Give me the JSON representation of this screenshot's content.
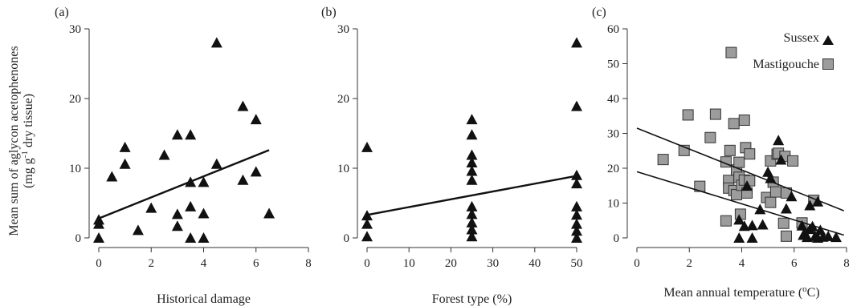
{
  "figure": {
    "ylabel_line1": "Mean sum of aglycon acetophenones",
    "ylabel_line2_pre": "(mg g",
    "ylabel_line2_sup": "-1",
    "ylabel_line2_post": " dry tissue)"
  },
  "chart_data": [
    {
      "panel_label": "(a)",
      "type": "scatter",
      "xlabel": "Historical damage",
      "ylabel": "Mean sum of aglycon acetophenones (mg g-1 dry tissue)",
      "xlim": [
        0,
        8
      ],
      "ylim": [
        0,
        30
      ],
      "xticks": [
        0,
        2,
        4,
        6,
        8
      ],
      "yticks": [
        0,
        10,
        20,
        30
      ],
      "marker": "triangle",
      "series": [
        {
          "points": [
            [
              0,
              0
            ],
            [
              0,
              2
            ],
            [
              0,
              2.6
            ],
            [
              0.5,
              8.8
            ],
            [
              1,
              13
            ],
            [
              1,
              10.6
            ],
            [
              1.5,
              1.1
            ],
            [
              2,
              4.3
            ],
            [
              2.5,
              11.9
            ],
            [
              3,
              14.8
            ],
            [
              3,
              3.4
            ],
            [
              3,
              1.7
            ],
            [
              3.5,
              14.8
            ],
            [
              3.5,
              8
            ],
            [
              3.5,
              4.5
            ],
            [
              3.5,
              0
            ],
            [
              4,
              8
            ],
            [
              4,
              3.5
            ],
            [
              4,
              0
            ],
            [
              4.5,
              28
            ],
            [
              4.5,
              10.6
            ],
            [
              5.5,
              18.9
            ],
            [
              5.5,
              8.3
            ],
            [
              6,
              17
            ],
            [
              6,
              9.5
            ],
            [
              6.5,
              3.5
            ]
          ]
        }
      ],
      "fits": [
        {
          "x": [
            0,
            6.5
          ],
          "y": [
            2.8,
            12.6
          ]
        }
      ]
    },
    {
      "panel_label": "(b)",
      "type": "scatter",
      "xlabel": "Forest type (%)",
      "xlim": [
        0,
        50
      ],
      "ylim": [
        0,
        30
      ],
      "xticks": [
        0,
        10,
        20,
        30,
        40,
        50
      ],
      "yticks": [
        0,
        10,
        20,
        30
      ],
      "marker": "triangle",
      "series": [
        {
          "points": [
            [
              0,
              13
            ],
            [
              0,
              3.2
            ],
            [
              0,
              2
            ],
            [
              0,
              0.2
            ],
            [
              25,
              17
            ],
            [
              25,
              14.8
            ],
            [
              25,
              11.9
            ],
            [
              25,
              10.8
            ],
            [
              25,
              9.6
            ],
            [
              25,
              8.3
            ],
            [
              25,
              4.5
            ],
            [
              25,
              3.4
            ],
            [
              25,
              2.2
            ],
            [
              25,
              1.2
            ],
            [
              25,
              0.2
            ],
            [
              50,
              28
            ],
            [
              50,
              18.9
            ],
            [
              50,
              9
            ],
            [
              50,
              7.8
            ],
            [
              50,
              4.5
            ],
            [
              50,
              3.3
            ],
            [
              50,
              2
            ],
            [
              50,
              1
            ],
            [
              50,
              0
            ]
          ]
        }
      ],
      "fits": [
        {
          "x": [
            0,
            50
          ],
          "y": [
            3.3,
            8.9
          ]
        }
      ]
    },
    {
      "panel_label": "(c)",
      "type": "scatter",
      "xlabel_pre": "Mean annual temperature (",
      "xlabel_sup": "o",
      "xlabel_post": "C)",
      "xlim": [
        0,
        8
      ],
      "ylim": [
        0,
        60
      ],
      "xticks": [
        0,
        2,
        4,
        6,
        8
      ],
      "yticks": [
        0,
        10,
        20,
        30,
        40,
        50,
        60
      ],
      "legend_position": "top-right",
      "series": [
        {
          "name": "Sussex",
          "marker": "triangle",
          "points": [
            [
              3.9,
              5.2
            ],
            [
              3.9,
              0
            ],
            [
              4.1,
              3.4
            ],
            [
              4.2,
              14.9
            ],
            [
              4.4,
              3.6
            ],
            [
              4.4,
              0
            ],
            [
              4.7,
              8.2
            ],
            [
              4.8,
              3.8
            ],
            [
              5.0,
              18.9
            ],
            [
              5.1,
              17.1
            ],
            [
              5.4,
              28
            ],
            [
              5.5,
              22.4
            ],
            [
              5.7,
              8.4
            ],
            [
              5.9,
              11.9
            ],
            [
              6.3,
              3.5
            ],
            [
              6.35,
              0.8
            ],
            [
              6.4,
              1.2
            ],
            [
              6.5,
              0.2
            ],
            [
              6.6,
              9.3
            ],
            [
              6.6,
              2.5
            ],
            [
              6.7,
              3.3
            ],
            [
              6.8,
              0.5
            ],
            [
              6.9,
              10.4
            ],
            [
              6.9,
              0
            ],
            [
              7.0,
              2.2
            ],
            [
              7.1,
              0.3
            ],
            [
              7.3,
              0.5
            ],
            [
              7.6,
              0.2
            ]
          ]
        },
        {
          "name": "Mastigouche",
          "marker": "square",
          "points": [
            [
              1.0,
              22.5
            ],
            [
              1.8,
              25.1
            ],
            [
              1.95,
              35.3
            ],
            [
              2.4,
              14.8
            ],
            [
              2.8,
              28.8
            ],
            [
              3.0,
              35.5
            ],
            [
              3.4,
              4.9
            ],
            [
              3.4,
              21.8
            ],
            [
              3.5,
              16.5
            ],
            [
              3.5,
              14.3
            ],
            [
              3.55,
              25.1
            ],
            [
              3.6,
              53.2
            ],
            [
              3.7,
              32.8
            ],
            [
              3.7,
              13.6
            ],
            [
              3.8,
              12.4
            ],
            [
              3.8,
              19.5
            ],
            [
              3.9,
              21.7
            ],
            [
              3.9,
              17.4
            ],
            [
              3.95,
              6.8
            ],
            [
              4.0,
              15.1
            ],
            [
              4.1,
              33.8
            ],
            [
              4.1,
              16.6
            ],
            [
              4.15,
              25.9
            ],
            [
              4.2,
              12.9
            ],
            [
              4.3,
              24.1
            ],
            [
              4.3,
              16.4
            ],
            [
              4.95,
              11.6
            ],
            [
              5.1,
              22.1
            ],
            [
              5.1,
              10.2
            ],
            [
              5.2,
              16
            ],
            [
              5.3,
              13.2
            ],
            [
              5.35,
              24
            ],
            [
              5.4,
              24.3
            ],
            [
              5.6,
              4.2
            ],
            [
              5.65,
              23.4
            ],
            [
              5.7,
              0.5
            ],
            [
              5.7,
              12.9
            ],
            [
              5.95,
              22.1
            ],
            [
              6.3,
              4.3
            ],
            [
              6.75,
              10.8
            ]
          ]
        }
      ],
      "fits": [
        {
          "series": "Mastigouche",
          "x": [
            0,
            7.9
          ],
          "y": [
            31.5,
            7.8
          ]
        },
        {
          "series": "Sussex",
          "x": [
            0,
            7.9
          ],
          "y": [
            19,
            0.8
          ]
        }
      ]
    }
  ]
}
